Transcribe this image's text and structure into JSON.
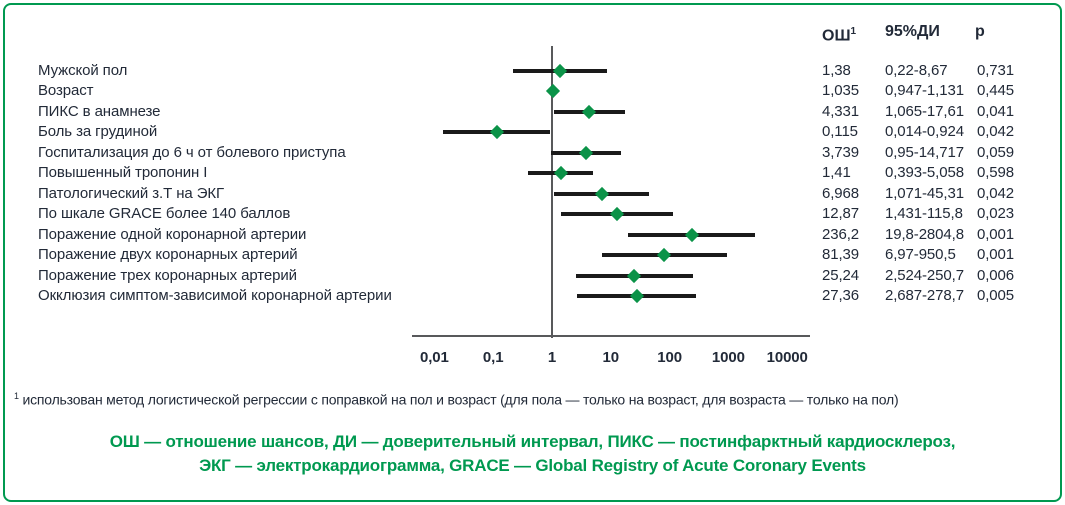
{
  "chart_data": {
    "type": "scatter",
    "subtype": "forest-plot",
    "title": "",
    "columns": {
      "or": "ОШ",
      "or_sup": "1",
      "ci": "95%ДИ",
      "p": "p"
    },
    "axis": {
      "scale": "log",
      "reference_line_value": 1,
      "tick_values": [
        0.01,
        0.1,
        1,
        10,
        100,
        1000,
        10000
      ],
      "tick_labels": [
        "0,01",
        "0,1",
        "1",
        "10",
        "100",
        "1000",
        "10000"
      ],
      "xlim": [
        0.01,
        10000
      ]
    },
    "rows": [
      {
        "label": "Мужской пол",
        "or": 1.38,
        "ci_low": 0.22,
        "ci_high": 8.67,
        "or_text": "1,38",
        "ci_text": "0,22-8,67",
        "p_text": "0,731"
      },
      {
        "label": "Возраст",
        "or": 1.035,
        "ci_low": 0.947,
        "ci_high": 1.131,
        "or_text": "1,035",
        "ci_text": "0,947-1,131",
        "p_text": "0,445"
      },
      {
        "label": "ПИКС в анамнезе",
        "or": 4.331,
        "ci_low": 1.065,
        "ci_high": 17.61,
        "or_text": "4,331",
        "ci_text": "1,065-17,61",
        "p_text": "0,041"
      },
      {
        "label": "Боль за грудиной",
        "or": 0.115,
        "ci_low": 0.014,
        "ci_high": 0.924,
        "or_text": "0,115",
        "ci_text": "0,014-0,924",
        "p_text": "0,042"
      },
      {
        "label": "Госпитализация до 6 ч от болевого приступа",
        "or": 3.739,
        "ci_low": 0.95,
        "ci_high": 14.717,
        "or_text": "3,739",
        "ci_text": "0,95-14,717",
        "p_text": "0,059"
      },
      {
        "label": "Повышенный тропонин I",
        "or": 1.41,
        "ci_low": 0.393,
        "ci_high": 5.058,
        "or_text": "1,41",
        "ci_text": "0,393-5,058",
        "p_text": "0,598"
      },
      {
        "label": "Патологический з.Т на ЭКГ",
        "or": 6.968,
        "ci_low": 1.071,
        "ci_high": 45.31,
        "or_text": "6,968",
        "ci_text": "1,071-45,31",
        "p_text": "0,042"
      },
      {
        "label": "По шкале GRACE более 140 баллов",
        "or": 12.87,
        "ci_low": 1.431,
        "ci_high": 115.8,
        "or_text": "12,87",
        "ci_text": "1,431-115,8",
        "p_text": "0,023"
      },
      {
        "label": "Поражение одной коронарной артерии",
        "or": 236.2,
        "ci_low": 19.8,
        "ci_high": 2804.8,
        "or_text": "236,2",
        "ci_text": "19,8-2804,8",
        "p_text": "0,001"
      },
      {
        "label": "Поражение двух коронарных артерий",
        "or": 81.39,
        "ci_low": 6.97,
        "ci_high": 950.5,
        "or_text": "81,39",
        "ci_text": "6,97-950,5",
        "p_text": "0,001"
      },
      {
        "label": "Поражение трех коронарных артерий",
        "or": 25.24,
        "ci_low": 2.524,
        "ci_high": 250.7,
        "or_text": "25,24",
        "ci_text": "2,524-250,7",
        "p_text": "0,006"
      },
      {
        "label": "Окклюзия симптом-зависимой коронарной артерии",
        "or": 27.36,
        "ci_low": 2.687,
        "ci_high": 278.7,
        "or_text": "27,36",
        "ci_text": "2,687-278,7",
        "p_text": "0,005"
      }
    ]
  },
  "footnote": {
    "sup": "1",
    "text": " использован метод логистической регрессии с поправкой на пол и возраст (для пола — только на возраст, для возраста — только на пол)"
  },
  "legend": {
    "line1": "ОШ — отношение шансов, ДИ — доверительный интервал, ПИКС — постинфарктный кардиосклероз,",
    "line2": "ЭКГ — электрокардиограмма, GRACE — Global Registry of Acute Coronary Events"
  },
  "colors": {
    "border_green": "#009950",
    "marker_green": "#0b9348",
    "text_dark": "#222a38",
    "ci_line": "#1a1a1a",
    "axis_gray": "#58595b"
  }
}
